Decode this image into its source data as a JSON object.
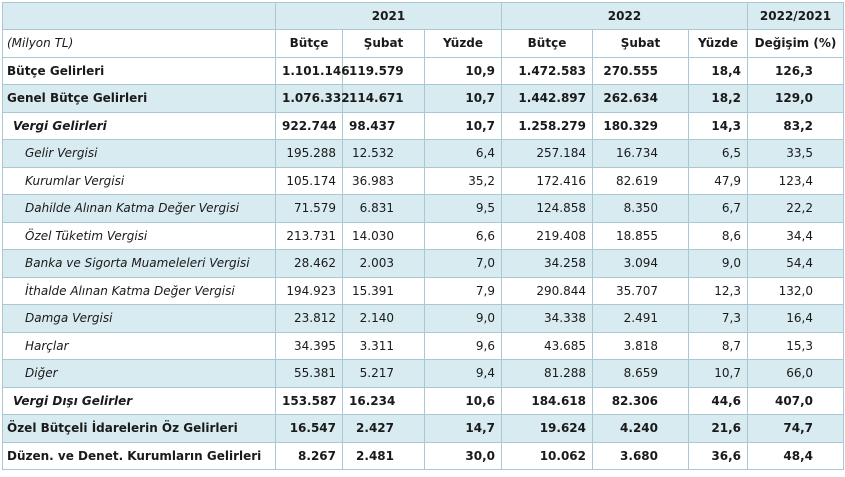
{
  "header": {
    "year_2021": "2021",
    "year_2022": "2022",
    "change_period": "2022/2021"
  },
  "subheader": {
    "unit": "(Milyon TL)",
    "butce": "Bütçe",
    "subat": "Şubat",
    "yuzde": "Yüzde",
    "butce2": "Bütçe",
    "subat2": "Şubat",
    "yuzde2": "Yüzde",
    "degisim": "Değişim (%)"
  },
  "rows": [
    {
      "label": "Bütçe Gelirleri",
      "b21": "1.101.146",
      "s21": "119.579",
      "y21": "10,9",
      "b22": "1.472.583",
      "s22": "270.555",
      "y22": "18,4",
      "chg": "126,3"
    },
    {
      "label": "Genel Bütçe Gelirleri",
      "b21": "1.076.332",
      "s21": "114.671",
      "y21": "10,7",
      "b22": "1.442.897",
      "s22": "262.634",
      "y22": "18,2",
      "chg": "129,0"
    },
    {
      "label": "Vergi Gelirleri",
      "b21": "922.744",
      "s21": "98.437",
      "y21": "10,7",
      "b22": "1.258.279",
      "s22": "180.329",
      "y22": "14,3",
      "chg": "83,2"
    },
    {
      "label": "Gelir Vergisi",
      "b21": "195.288",
      "s21": "12.532",
      "y21": "6,4",
      "b22": "257.184",
      "s22": "16.734",
      "y22": "6,5",
      "chg": "33,5"
    },
    {
      "label": "Kurumlar Vergisi",
      "b21": "105.174",
      "s21": "36.983",
      "y21": "35,2",
      "b22": "172.416",
      "s22": "82.619",
      "y22": "47,9",
      "chg": "123,4"
    },
    {
      "label": "Dahilde Alınan Katma Değer Vergisi",
      "b21": "71.579",
      "s21": "6.831",
      "y21": "9,5",
      "b22": "124.858",
      "s22": "8.350",
      "y22": "6,7",
      "chg": "22,2"
    },
    {
      "label": "Özel Tüketim Vergisi",
      "b21": "213.731",
      "s21": "14.030",
      "y21": "6,6",
      "b22": "219.408",
      "s22": "18.855",
      "y22": "8,6",
      "chg": "34,4"
    },
    {
      "label": "Banka ve Sigorta Muameleleri Vergisi",
      "b21": "28.462",
      "s21": "2.003",
      "y21": "7,0",
      "b22": "34.258",
      "s22": "3.094",
      "y22": "9,0",
      "chg": "54,4"
    },
    {
      "label": "İthalde Alınan Katma Değer Vergisi",
      "b21": "194.923",
      "s21": "15.391",
      "y21": "7,9",
      "b22": "290.844",
      "s22": "35.707",
      "y22": "12,3",
      "chg": "132,0"
    },
    {
      "label": "Damga Vergisi",
      "b21": "23.812",
      "s21": "2.140",
      "y21": "9,0",
      "b22": "34.338",
      "s22": "2.491",
      "y22": "7,3",
      "chg": "16,4"
    },
    {
      "label": "Harçlar",
      "b21": "34.395",
      "s21": "3.311",
      "y21": "9,6",
      "b22": "43.685",
      "s22": "3.818",
      "y22": "8,7",
      "chg": "15,3"
    },
    {
      "label": "Diğer",
      "b21": "55.381",
      "s21": "5.217",
      "y21": "9,4",
      "b22": "81.288",
      "s22": "8.659",
      "y22": "10,7",
      "chg": "66,0"
    },
    {
      "label": "Vergi Dışı Gelirler",
      "b21": "153.587",
      "s21": "16.234",
      "y21": "10,6",
      "b22": "184.618",
      "s22": "82.306",
      "y22": "44,6",
      "chg": "407,0"
    },
    {
      "label": "Özel Bütçeli İdarelerin Öz Gelirleri",
      "b21": "16.547",
      "s21": "2.427",
      "y21": "14,7",
      "b22": "19.624",
      "s22": "4.240",
      "y22": "21,6",
      "chg": "74,7"
    },
    {
      "label": "Düzen. ve Denet. Kurumların Gelirleri",
      "b21": "8.267",
      "s21": "2.481",
      "y21": "30,0",
      "b22": "10.062",
      "s22": "3.680",
      "y22": "36,6",
      "chg": "48,4"
    }
  ]
}
